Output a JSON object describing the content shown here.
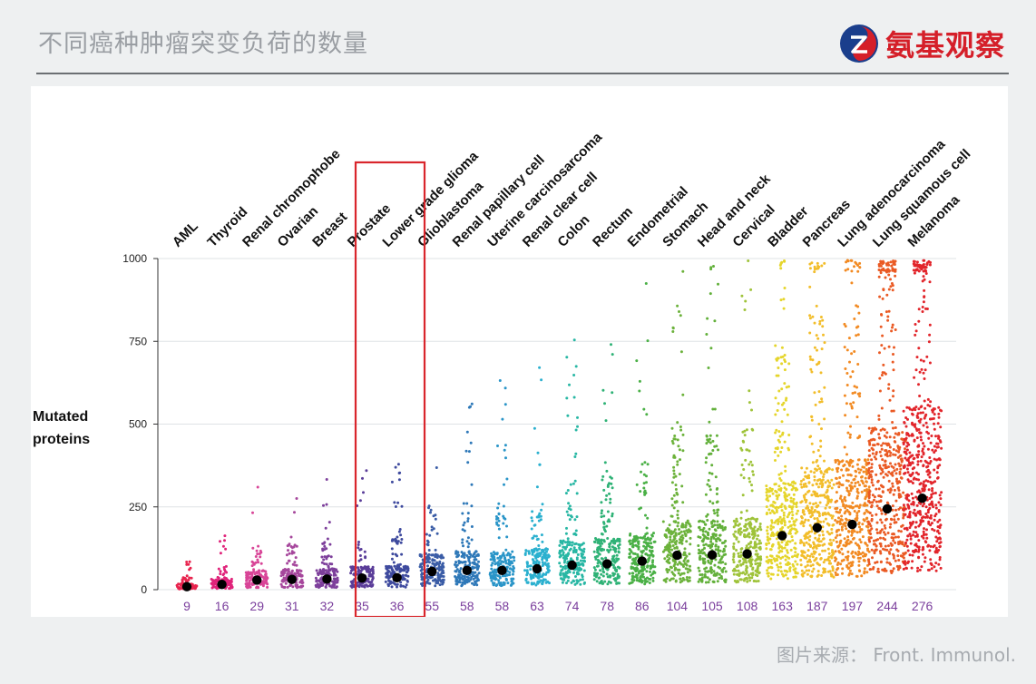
{
  "slide": {
    "title": "不同癌种肿瘤突变负荷的数量",
    "logo_text": "氨基观察",
    "source": "图片来源： Front. Immunol."
  },
  "colors": {
    "logo_red": "#d51f29",
    "logo_blue": "#1a3e8c",
    "highlight_box": "#d9262c",
    "median_dot": "#000000"
  },
  "chart_data": {
    "type": "scatter",
    "subtype": "strip/jitter plot with median markers",
    "ylabel": "Mutated\nproteins",
    "xlabel": "",
    "ylim": [
      0,
      1000
    ],
    "yticks": [
      0,
      250,
      500,
      750,
      1000
    ],
    "grid": true,
    "highlight": [
      "Prostate",
      "Lower grade glioma"
    ],
    "categories": [
      "AML",
      "Thyroid",
      "Renal chromophobe",
      "Ovarian",
      "Breast",
      "Prostate",
      "Lower grade glioma",
      "Glioblastoma",
      "Renal papillary cell",
      "Uterine carcinosarcoma",
      "Renal clear cell",
      "Colon",
      "Rectum",
      "Endometrial",
      "Stomach",
      "Head and neck",
      "Cervical",
      "Bladder",
      "Pancreas",
      "Lung adenocarcinoma",
      "Lung squamous cell",
      "Melanoma"
    ],
    "medians": [
      9,
      16,
      29,
      31,
      32,
      35,
      36,
      55,
      58,
      58,
      63,
      74,
      78,
      86,
      104,
      105,
      108,
      163,
      187,
      197,
      244,
      276
    ],
    "median_labels": [
      "9",
      "16",
      "29",
      "31",
      "32",
      "35",
      "36",
      "55",
      "58",
      "58",
      "63",
      "74",
      "78",
      "86",
      "104",
      "105",
      "108",
      "163",
      "187",
      "197",
      "244",
      "276"
    ],
    "colors": [
      "#e8244e",
      "#e0237a",
      "#d84597",
      "#a6479c",
      "#7d3f9b",
      "#5a3d99",
      "#3e4a9e",
      "#3a5ca6",
      "#2e78b8",
      "#2a95c8",
      "#2bb0cf",
      "#28b7a4",
      "#2fb276",
      "#4ab046",
      "#6cb23b",
      "#62b03a",
      "#9fc33a",
      "#e5d52b",
      "#f2bd2a",
      "#f28a22",
      "#ea5a24",
      "#e2252b"
    ]
  }
}
